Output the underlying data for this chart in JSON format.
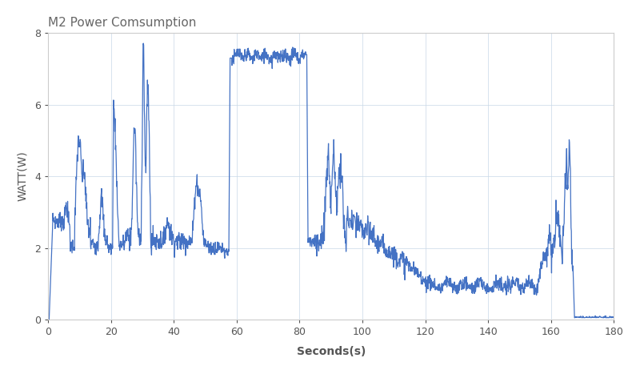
{
  "title": "M2 Power Comsumption",
  "xlabel": "Seconds(s)",
  "ylabel": "WATT(W)",
  "xlim": [
    0,
    180
  ],
  "ylim": [
    0,
    8
  ],
  "xticks": [
    0,
    20,
    40,
    60,
    80,
    100,
    120,
    140,
    160,
    180
  ],
  "yticks": [
    0,
    2,
    4,
    6,
    8
  ],
  "line_color": "#4472C4",
  "line_width": 0.9,
  "bg_color": "#FFFFFF",
  "grid_color": "#C8D8E8",
  "title_fontsize": 11,
  "label_fontsize": 10,
  "tick_fontsize": 9,
  "title_color": "#666666",
  "label_color": "#555555",
  "tick_color": "#555555"
}
